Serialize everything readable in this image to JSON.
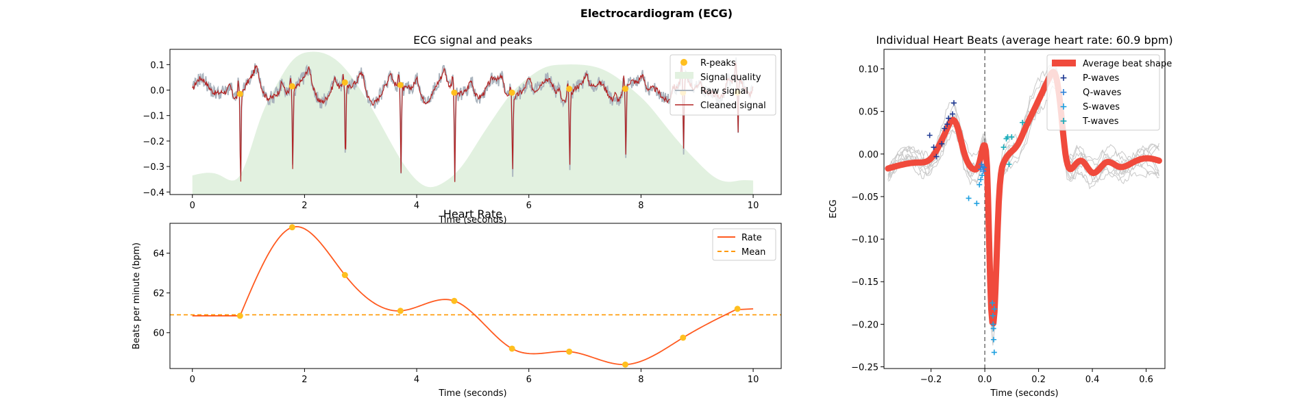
{
  "figure": {
    "title": "Electrocardiogram (ECG)"
  },
  "colors": {
    "raw": "#a9b3bd",
    "cleaned": "#b22222",
    "peak": "#ffbf1f",
    "quality": "#e2f1e0",
    "rate": "#ff5a1f",
    "mean": "#ff9800",
    "average_beat": "#f04a3c",
    "p_wave": "#1f3a93",
    "q_wave": "#2f82d8",
    "s_wave": "#1fa0e0",
    "t_wave": "#16aab8",
    "individual": "#c8c8c8",
    "zero_line": "#666666"
  },
  "chart_data": [
    {
      "id": "ecg_signal",
      "type": "line",
      "title": "ECG signal and peaks",
      "xlabel": "Time (seconds)",
      "ylabel": "",
      "xlim": [
        -0.4,
        10.5
      ],
      "ylim": [
        -0.41,
        0.16
      ],
      "xticks": [
        0,
        2,
        4,
        6,
        8,
        10
      ],
      "yticks": [
        -0.4,
        -0.3,
        -0.2,
        -0.1,
        0.0,
        0.1
      ],
      "ytick_labels": [
        "−0.4",
        "−0.3",
        "−0.2",
        "−0.1",
        "0.0",
        "0.1"
      ],
      "legend": [
        "R-peaks",
        "Signal quality",
        "Raw signal",
        "Cleaned signal"
      ],
      "legend_location": "upper right",
      "r_peaks": {
        "x": [
          0.85,
          1.78,
          2.72,
          3.71,
          4.67,
          5.7,
          6.72,
          7.72,
          8.75,
          9.72
        ],
        "y": [
          -0.015,
          0.015,
          0.03,
          0.02,
          -0.01,
          -0.01,
          0.005,
          0.005,
          -0.01,
          -0.01
        ]
      },
      "r_amplitude": {
        "x": [
          0.85,
          1.78,
          2.72,
          3.71,
          4.67,
          5.7,
          6.72,
          7.72,
          8.75,
          9.72
        ],
        "min": [
          -0.37,
          -0.31,
          -0.3,
          -0.33,
          -0.35,
          -0.29,
          -0.28,
          -0.27,
          -0.28,
          -0.22
        ]
      },
      "signal_quality": {
        "x": [
          0.0,
          0.5,
          0.85,
          1.2,
          1.5,
          1.8,
          2.1,
          2.4,
          2.7,
          3.0,
          3.3,
          3.6,
          3.9,
          4.2,
          4.5,
          4.8,
          5.1,
          5.4,
          5.7,
          6.0,
          6.3,
          6.6,
          6.9,
          7.2,
          7.5,
          7.8,
          8.1,
          8.4,
          8.7,
          9.0,
          9.3,
          9.6,
          9.75,
          10.0
        ],
        "y": [
          -0.335,
          -0.335,
          -0.335,
          -0.12,
          0.02,
          0.12,
          0.15,
          0.14,
          0.09,
          0.0,
          -0.11,
          -0.23,
          -0.33,
          -0.38,
          -0.36,
          -0.3,
          -0.2,
          -0.1,
          -0.01,
          0.05,
          0.09,
          0.1,
          0.1,
          0.09,
          0.06,
          0.01,
          -0.05,
          -0.13,
          -0.21,
          -0.28,
          -0.34,
          -0.36,
          -0.355,
          -0.355
        ]
      },
      "series": [
        {
          "name": "Raw signal",
          "noise": 0.028
        },
        {
          "name": "Cleaned signal",
          "noise": 0.018
        }
      ]
    },
    {
      "id": "heart_rate",
      "type": "line",
      "title": "Heart Rate",
      "xlabel": "Time (seconds)",
      "ylabel": "Beats per minute (bpm)",
      "xlim": [
        -0.4,
        10.5
      ],
      "ylim": [
        58.2,
        65.5
      ],
      "xticks": [
        0,
        2,
        4,
        6,
        8,
        10
      ],
      "yticks": [
        60,
        62,
        64
      ],
      "legend": [
        "Rate",
        "Mean"
      ],
      "legend_location": "upper right",
      "mean": 60.9,
      "points": {
        "x": [
          0.85,
          1.78,
          2.72,
          3.71,
          4.67,
          5.7,
          6.72,
          7.72,
          8.75,
          9.72
        ],
        "y": [
          60.85,
          65.3,
          62.9,
          61.1,
          61.6,
          59.2,
          59.05,
          58.4,
          59.75,
          61.2
        ]
      },
      "rate_line": {
        "x": [
          0.0,
          0.85,
          1.78,
          2.72,
          3.71,
          4.67,
          5.7,
          6.72,
          7.72,
          8.75,
          9.72,
          10.0
        ],
        "y": [
          60.85,
          60.85,
          65.3,
          62.9,
          61.1,
          61.6,
          59.2,
          59.05,
          58.4,
          59.75,
          61.2,
          61.2
        ]
      }
    },
    {
      "id": "heart_beats",
      "type": "line",
      "title": "Individual Heart Beats (average heart rate: 60.9 bpm)",
      "xlabel": "Time (seconds)",
      "ylabel": "ECG",
      "xlim": [
        -0.375,
        0.67
      ],
      "ylim": [
        -0.252,
        0.123
      ],
      "xticks": [
        -0.2,
        0.0,
        0.2,
        0.4,
        0.6
      ],
      "xtick_labels": [
        "−0.2",
        "0.0",
        "0.2",
        "0.4",
        "0.6"
      ],
      "yticks": [
        -0.25,
        -0.2,
        -0.15,
        -0.1,
        -0.05,
        0.0,
        0.05,
        0.1
      ],
      "ytick_labels": [
        "−0.25",
        "−0.20",
        "−0.15",
        "−0.10",
        "−0.05",
        "0.00",
        "0.05",
        "0.10"
      ],
      "legend": [
        "Average beat shape",
        "P-waves",
        "Q-waves",
        "S-waves",
        "T-waves"
      ],
      "legend_location": "upper right",
      "average_beat": {
        "x": [
          -0.36,
          -0.3,
          -0.25,
          -0.2,
          -0.17,
          -0.14,
          -0.12,
          -0.1,
          -0.08,
          -0.06,
          -0.04,
          -0.02,
          0.0,
          0.01,
          0.02,
          0.03,
          0.035,
          0.05,
          0.07,
          0.09,
          0.12,
          0.15,
          0.18,
          0.21,
          0.24,
          0.26,
          0.28,
          0.3,
          0.33,
          0.36,
          0.4,
          0.45,
          0.5,
          0.55,
          0.6,
          0.65
        ],
        "y": [
          -0.017,
          -0.012,
          -0.01,
          -0.005,
          0.01,
          0.03,
          0.04,
          0.03,
          0.005,
          -0.012,
          -0.018,
          -0.01,
          0.01,
          -0.03,
          -0.15,
          -0.2,
          -0.19,
          -0.07,
          -0.01,
          0.0,
          0.01,
          0.03,
          0.05,
          0.07,
          0.09,
          0.095,
          0.06,
          0.0,
          -0.015,
          -0.008,
          -0.022,
          -0.01,
          -0.015,
          -0.01,
          -0.005,
          -0.008
        ]
      },
      "p_waves": {
        "x": [
          -0.205,
          -0.19,
          -0.18,
          -0.16,
          -0.15,
          -0.14,
          -0.135,
          -0.12,
          -0.115
        ],
        "y": [
          0.022,
          0.008,
          -0.003,
          0.012,
          0.03,
          0.035,
          0.042,
          0.047,
          0.06
        ]
      },
      "q_waves": {
        "x": [
          -0.015,
          -0.012,
          -0.008,
          -0.005,
          -0.003
        ],
        "y": [
          -0.018,
          -0.012,
          -0.015,
          -0.02,
          -0.016
        ]
      },
      "s_waves": {
        "x": [
          0.028,
          0.03,
          0.031,
          0.032,
          0.033,
          0.035,
          0.036,
          -0.06,
          -0.03,
          -0.02,
          -0.015,
          -0.01
        ],
        "y": [
          -0.175,
          -0.19,
          -0.2,
          -0.205,
          -0.218,
          -0.233,
          -0.182,
          -0.052,
          -0.058,
          -0.036,
          -0.03,
          -0.025
        ]
      },
      "t_waves": {
        "x": [
          0.07,
          0.08,
          0.085,
          0.09,
          0.1,
          0.14
        ],
        "y": [
          0.008,
          0.018,
          0.02,
          -0.012,
          0.02,
          0.037
        ]
      }
    }
  ]
}
